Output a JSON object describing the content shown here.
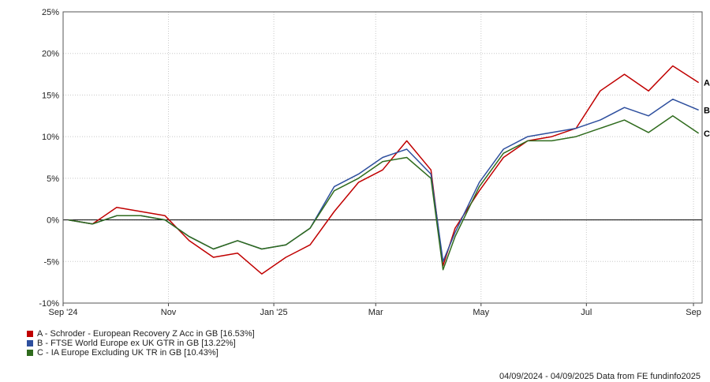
{
  "chart_data": {
    "type": "line",
    "title": "",
    "xlabel": "",
    "ylabel": "",
    "y_unit": "%",
    "ylim": [
      -10,
      25
    ],
    "y_ticks": [
      -10,
      -5,
      0,
      5,
      10,
      15,
      20,
      25
    ],
    "y_tick_labels": [
      "-10%",
      "-5%",
      "0%",
      "5%",
      "10%",
      "15%",
      "20%",
      "25%"
    ],
    "x_range": [
      "2024-09-04",
      "2025-09-04"
    ],
    "x_ticks": [
      {
        "label": "Sep '24",
        "date": "2024-09-01"
      },
      {
        "label": "Nov",
        "date": "2024-11-01"
      },
      {
        "label": "Jan '25",
        "date": "2025-01-01"
      },
      {
        "label": "Mar",
        "date": "2025-03-01"
      },
      {
        "label": "May",
        "date": "2025-05-01"
      },
      {
        "label": "Jul",
        "date": "2025-07-01"
      },
      {
        "label": "Sep",
        "date": "2025-09-01"
      }
    ],
    "grid": true,
    "legend_position": "bottom-left",
    "x": [
      "2024-09-04",
      "2024-09-18",
      "2024-10-02",
      "2024-10-16",
      "2024-10-30",
      "2024-11-13",
      "2024-11-27",
      "2024-12-11",
      "2024-12-25",
      "2025-01-08",
      "2025-01-22",
      "2025-02-05",
      "2025-02-19",
      "2025-03-05",
      "2025-03-19",
      "2025-04-02",
      "2025-04-09",
      "2025-04-16",
      "2025-04-30",
      "2025-05-14",
      "2025-05-28",
      "2025-06-11",
      "2025-06-25",
      "2025-07-09",
      "2025-07-23",
      "2025-08-06",
      "2025-08-20",
      "2025-09-04"
    ],
    "series": [
      {
        "label": "A",
        "color": "#c00000",
        "values": [
          0,
          -0.5,
          1.5,
          1.0,
          0.5,
          -2.5,
          -4.5,
          -4.0,
          -6.5,
          -4.5,
          -3.0,
          1.0,
          4.5,
          6.0,
          9.5,
          6.0,
          -5.5,
          -1.0,
          3.5,
          7.5,
          9.5,
          10.0,
          11.0,
          15.5,
          17.5,
          15.5,
          18.5,
          16.5
        ]
      },
      {
        "label": "B",
        "color": "#2e4f9e",
        "values": [
          0,
          -0.5,
          0.5,
          0.5,
          0,
          -2.0,
          -3.5,
          -2.5,
          -3.5,
          -3.0,
          -1.0,
          4.0,
          5.5,
          7.5,
          8.5,
          5.5,
          -5.0,
          -1.5,
          4.5,
          8.5,
          10.0,
          10.5,
          11.0,
          12.0,
          13.5,
          12.5,
          14.5,
          13.2
        ]
      },
      {
        "label": "C",
        "color": "#2f6b1d",
        "values": [
          0,
          -0.5,
          0.5,
          0.5,
          0,
          -2.0,
          -3.5,
          -2.5,
          -3.5,
          -3.0,
          -1.0,
          3.5,
          5.0,
          7.0,
          7.5,
          5.0,
          -6.0,
          -2.0,
          4.0,
          8.0,
          9.5,
          9.5,
          10.0,
          11.0,
          12.0,
          10.5,
          12.5,
          10.4
        ]
      }
    ]
  },
  "legend": [
    {
      "text": "A - Schroder - European Recovery Z Acc in GB [16.53%]",
      "color": "#c00000"
    },
    {
      "text": "B - FTSE World Europe ex UK GTR in GB [13.22%]",
      "color": "#2e4f9e"
    },
    {
      "text": "C - IA Europe Excluding UK TR in GB [10.43%]",
      "color": "#2f6b1d"
    }
  ],
  "footer": "04/09/2024 - 04/09/2025 Data from FE fundinfo2025"
}
